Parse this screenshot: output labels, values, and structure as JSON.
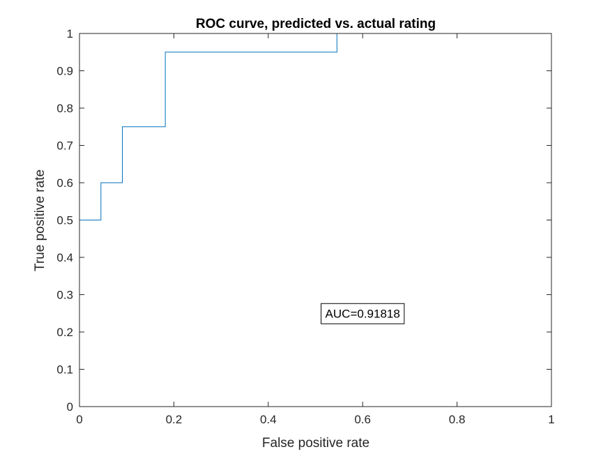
{
  "chart_data": {
    "type": "line",
    "title": "ROC curve, predicted vs. actual rating",
    "xlabel": "False positive rate",
    "ylabel": "True positive rate",
    "xlim": [
      0,
      1
    ],
    "ylim": [
      0,
      1
    ],
    "xticks": [
      "0",
      "0.2",
      "0.4",
      "0.6",
      "0.8",
      "1"
    ],
    "yticks": [
      "0",
      "0.1",
      "0.2",
      "0.3",
      "0.4",
      "0.5",
      "0.6",
      "0.7",
      "0.8",
      "0.9",
      "1"
    ],
    "grid": false,
    "series": [
      {
        "color": "#0072BD",
        "step": true,
        "x": [
          0,
          0,
          0.04545,
          0.04545,
          0.09091,
          0.09091,
          0.18182,
          0.18182,
          0.54545,
          0.54545,
          1
        ],
        "y": [
          0,
          0.5,
          0.5,
          0.6,
          0.6,
          0.75,
          0.75,
          0.95,
          0.95,
          1,
          1
        ]
      }
    ],
    "annotations": [
      {
        "text": "AUC=0.91818",
        "x": 0.6,
        "y": 0.25
      }
    ]
  }
}
